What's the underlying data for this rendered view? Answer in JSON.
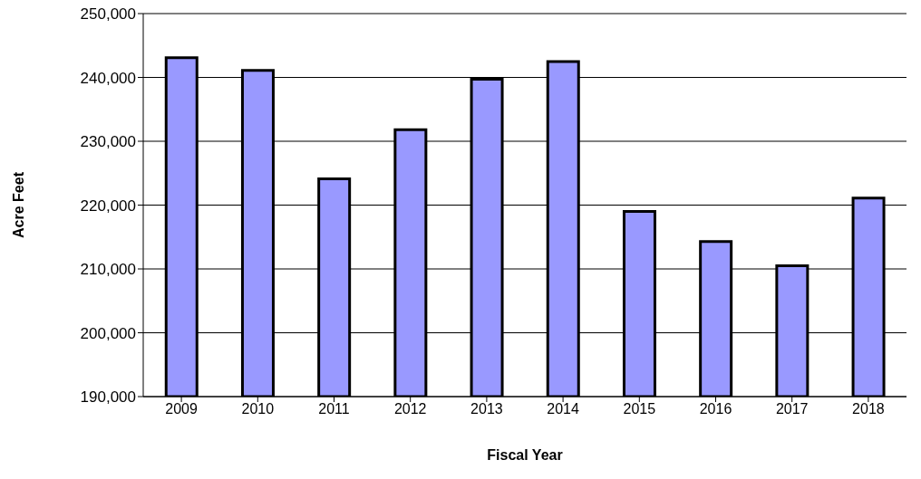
{
  "chart_data": {
    "type": "bar",
    "xlabel": "Fiscal Year",
    "ylabel": "Acre Feet",
    "categories": [
      "2009",
      "2010",
      "2011",
      "2012",
      "2013",
      "2014",
      "2015",
      "2016",
      "2017",
      "2018"
    ],
    "values": [
      243100,
      241100,
      224100,
      231800,
      239700,
      242500,
      219000,
      214300,
      210500,
      221100
    ],
    "color": "#9999ff",
    "ylim": [
      190000,
      250000
    ],
    "yticks": [
      {
        "value": 190000,
        "label": "190,000"
      },
      {
        "value": 200000,
        "label": "200,000"
      },
      {
        "value": 210000,
        "label": "210,000"
      },
      {
        "value": 220000,
        "label": "220,000"
      },
      {
        "value": 230000,
        "label": "230,000"
      },
      {
        "value": 240000,
        "label": "240,000"
      },
      {
        "value": 250000,
        "label": "250,000"
      }
    ],
    "grid": "y"
  }
}
